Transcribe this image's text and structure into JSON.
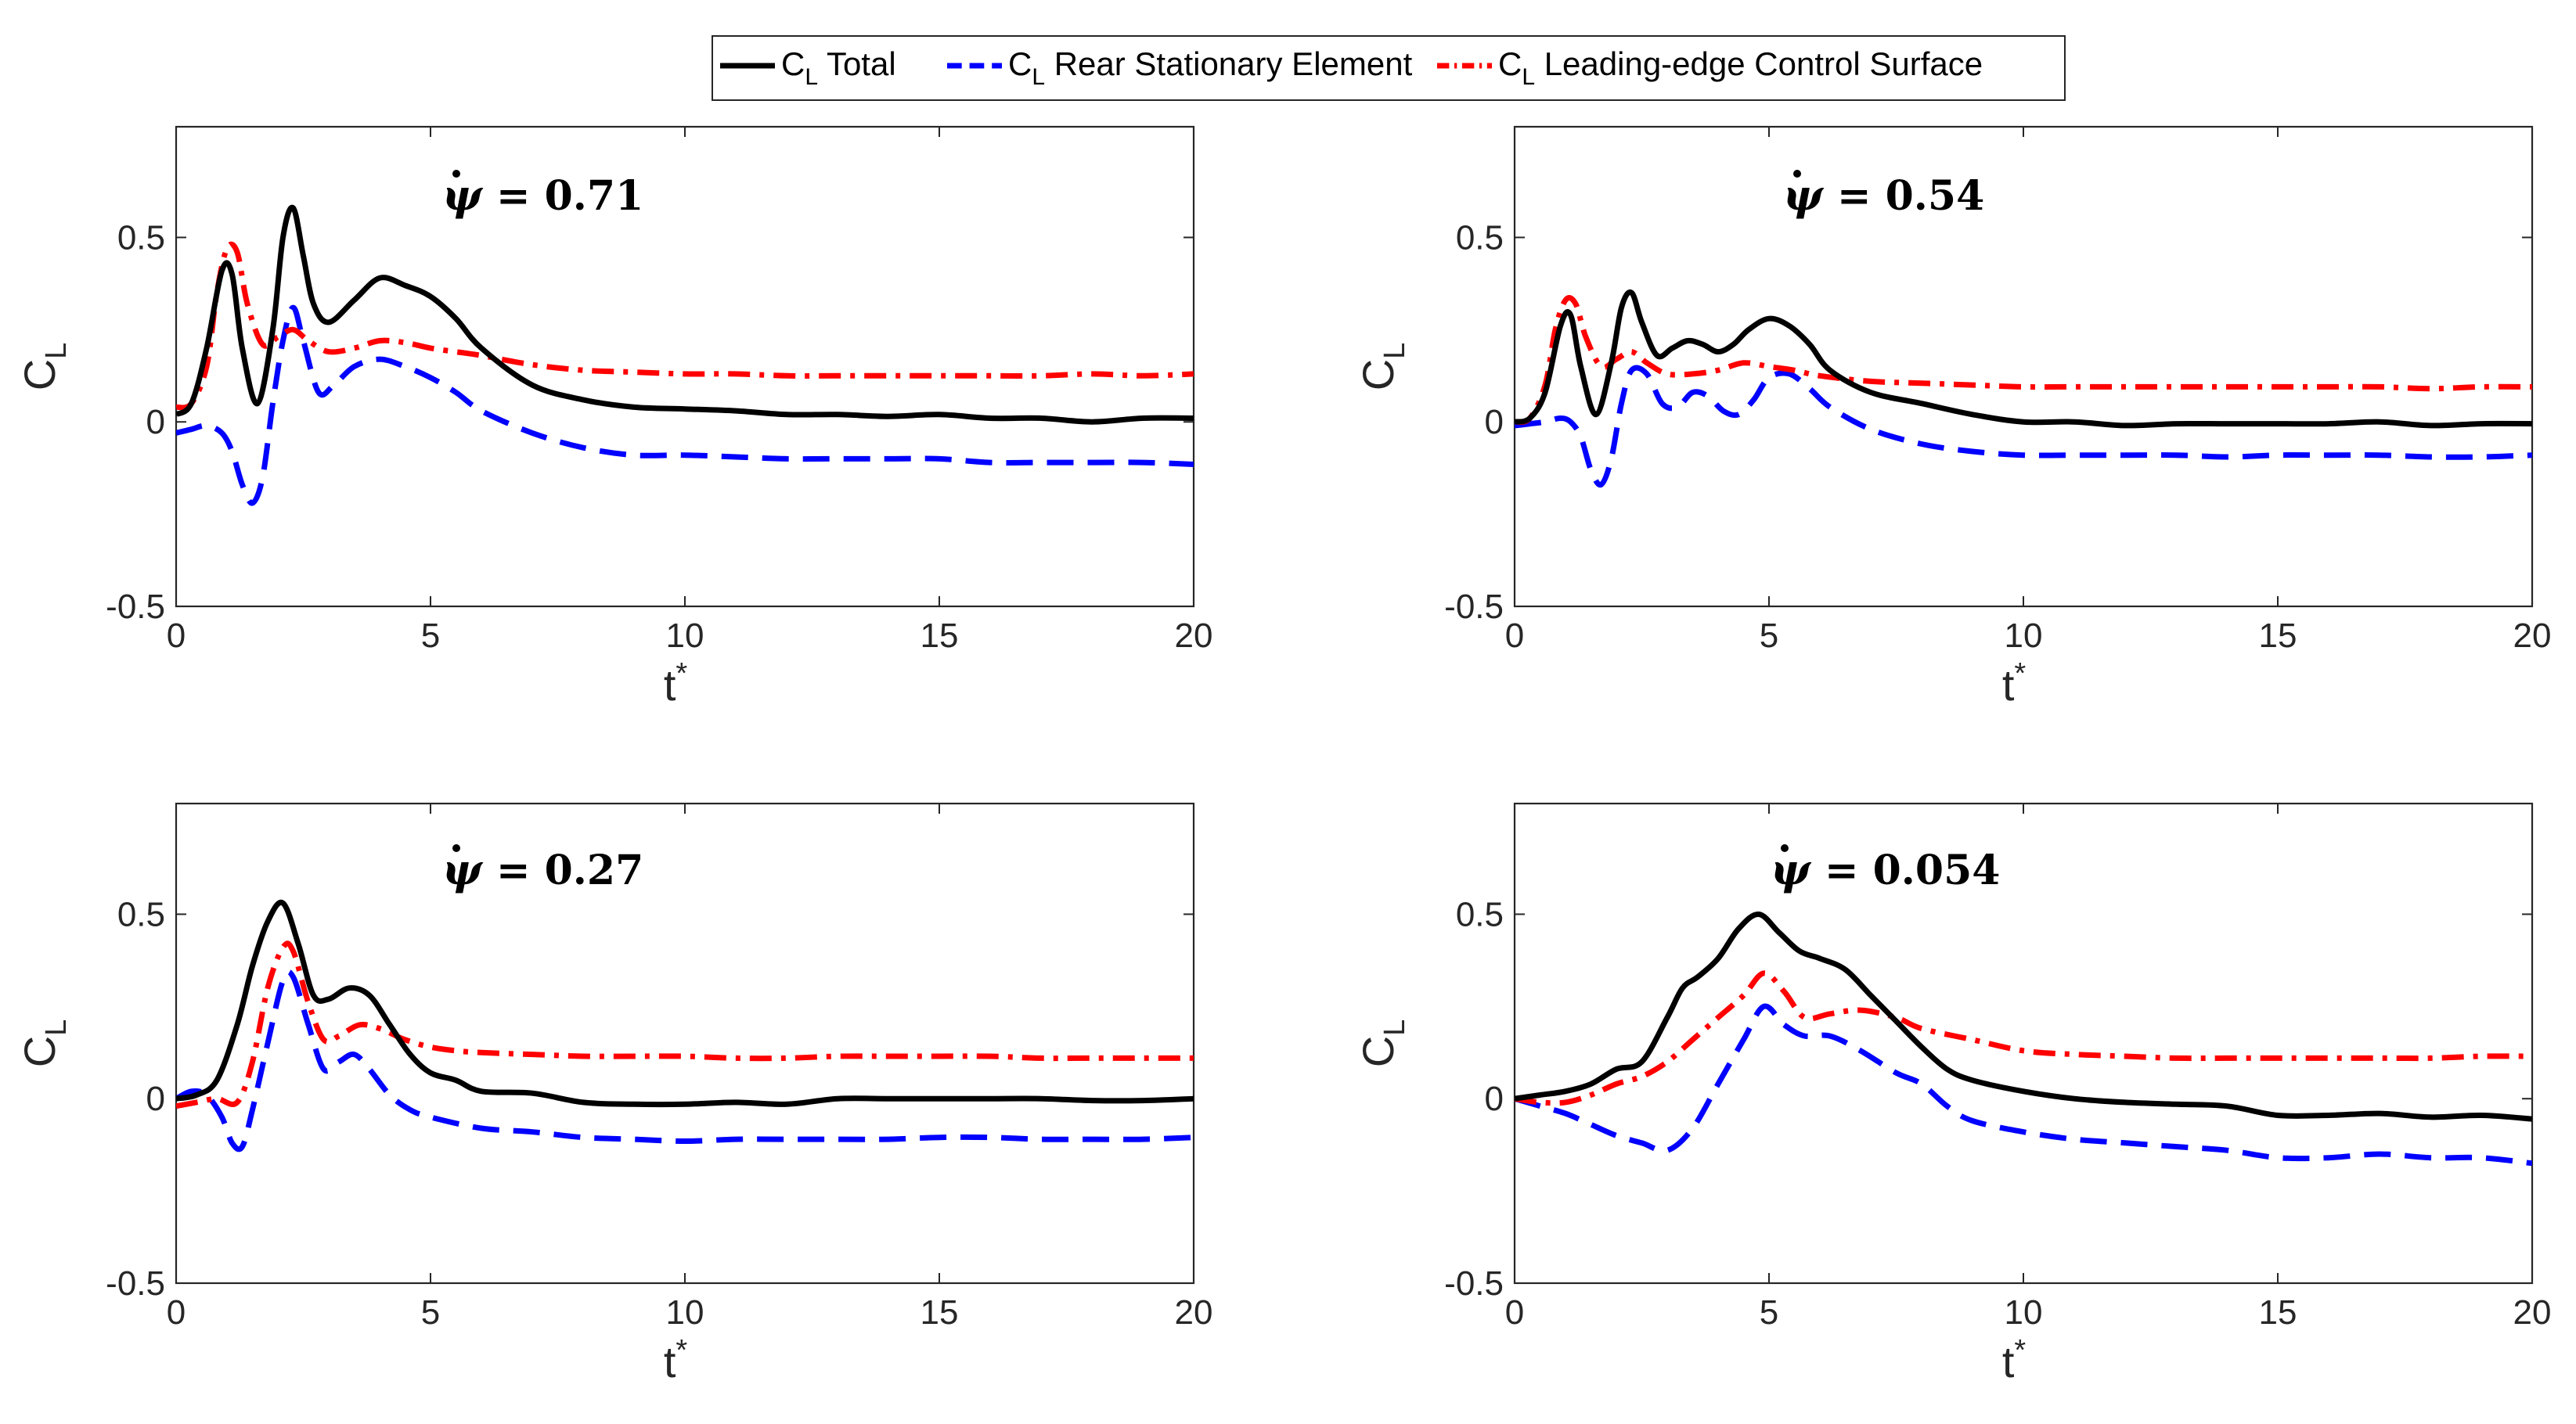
{
  "legend": {
    "entries": [
      {
        "prefix": "C",
        "sub": "L",
        "label": "Total",
        "color": "#000000",
        "dash": "solid"
      },
      {
        "prefix": "C",
        "sub": "L",
        "label": "Rear Stationary Element",
        "color": "#0000ff",
        "dash": "dashed"
      },
      {
        "prefix": "C",
        "sub": "L",
        "label": "Leading-edge Control Surface",
        "color": "#ff0000",
        "dash": "dashdot"
      }
    ]
  },
  "axis_labels": {
    "y_main": "C",
    "y_sub": "L",
    "x_main": "t",
    "x_sup": "*"
  },
  "chart_data": [
    {
      "type": "line",
      "title": "",
      "annotation": {
        "symbol": "ψ",
        "text": " = 0.71"
      },
      "xlabel": "t*",
      "ylabel": "CL",
      "xlim": [
        0,
        20
      ],
      "ylim": [
        -0.5,
        0.8
      ],
      "xticks": [
        "0",
        "5",
        "10",
        "15",
        "20"
      ],
      "yticks": [
        "-0.5",
        "0",
        "0.5"
      ],
      "series": [
        {
          "name": "CL Total",
          "x": [
            0,
            0.3,
            0.6,
            0.9,
            1.1,
            1.3,
            1.6,
            1.9,
            2.1,
            2.3,
            2.5,
            2.7,
            3.0,
            3.5,
            4.0,
            4.5,
            5.0,
            5.5,
            6.0,
            7.0,
            8.0,
            9.0,
            10,
            11,
            12,
            13,
            14,
            15,
            16,
            17,
            18,
            19,
            20
          ],
          "values": [
            0.02,
            0.05,
            0.2,
            0.41,
            0.4,
            0.2,
            0.05,
            0.25,
            0.5,
            0.58,
            0.45,
            0.32,
            0.27,
            0.33,
            0.39,
            0.37,
            0.34,
            0.28,
            0.2,
            0.1,
            0.06,
            0.04,
            0.035,
            0.03,
            0.02,
            0.02,
            0.015,
            0.02,
            0.01,
            0.01,
            0.0,
            0.01,
            0.01
          ]
        },
        {
          "name": "CL Rear Stationary Element",
          "x": [
            0,
            0.3,
            0.6,
            0.9,
            1.1,
            1.3,
            1.5,
            1.7,
            1.9,
            2.1,
            2.3,
            2.5,
            2.8,
            3.1,
            3.5,
            4.0,
            4.5,
            5.0,
            5.5,
            6.0,
            7.0,
            8.0,
            9.0,
            10,
            11,
            12,
            13,
            14,
            15,
            16,
            17,
            18,
            19,
            20
          ],
          "values": [
            -0.03,
            -0.02,
            -0.01,
            -0.03,
            -0.08,
            -0.17,
            -0.22,
            -0.15,
            0.05,
            0.22,
            0.31,
            0.22,
            0.08,
            0.1,
            0.15,
            0.17,
            0.15,
            0.12,
            0.08,
            0.03,
            -0.03,
            -0.07,
            -0.09,
            -0.09,
            -0.095,
            -0.1,
            -0.1,
            -0.1,
            -0.1,
            -0.11,
            -0.11,
            -0.11,
            -0.11,
            -0.115
          ]
        },
        {
          "name": "CL Leading-edge Control Surface",
          "x": [
            0,
            0.3,
            0.6,
            0.8,
            1.0,
            1.2,
            1.4,
            1.7,
            2.0,
            2.3,
            2.6,
            3.0,
            3.5,
            4.0,
            4.5,
            5.0,
            5.5,
            6.0,
            7.0,
            8.0,
            9.0,
            10,
            11,
            12,
            13,
            14,
            15,
            16,
            17,
            18,
            19,
            20
          ],
          "values": [
            0.04,
            0.05,
            0.15,
            0.35,
            0.47,
            0.46,
            0.32,
            0.21,
            0.23,
            0.25,
            0.22,
            0.19,
            0.2,
            0.22,
            0.215,
            0.2,
            0.19,
            0.18,
            0.155,
            0.14,
            0.135,
            0.13,
            0.13,
            0.125,
            0.125,
            0.125,
            0.125,
            0.125,
            0.125,
            0.13,
            0.125,
            0.13
          ]
        }
      ]
    },
    {
      "type": "line",
      "title": "",
      "annotation": {
        "symbol": "ψ",
        "text": " = 0.54"
      },
      "xlabel": "t*",
      "ylabel": "CL",
      "xlim": [
        0,
        20
      ],
      "ylim": [
        -0.5,
        0.8
      ],
      "xticks": [
        "0",
        "5",
        "10",
        "15",
        "20"
      ],
      "yticks": [
        "-0.5",
        "0",
        "0.5"
      ],
      "series": [
        {
          "name": "CL Total",
          "x": [
            0,
            0.3,
            0.6,
            0.9,
            1.1,
            1.3,
            1.6,
            1.9,
            2.1,
            2.3,
            2.5,
            2.8,
            3.1,
            3.4,
            3.7,
            4.0,
            4.3,
            4.6,
            5.0,
            5.4,
            5.8,
            6.2,
            7.0,
            8.0,
            9.0,
            10,
            11,
            12,
            13,
            14,
            15,
            16,
            17,
            18,
            19,
            20
          ],
          "values": [
            0.0,
            0.01,
            0.08,
            0.26,
            0.29,
            0.15,
            0.02,
            0.16,
            0.31,
            0.35,
            0.27,
            0.18,
            0.2,
            0.22,
            0.21,
            0.19,
            0.21,
            0.25,
            0.28,
            0.26,
            0.21,
            0.14,
            0.08,
            0.05,
            0.02,
            0.0,
            0.0,
            -0.01,
            -0.005,
            -0.005,
            -0.005,
            -0.005,
            0.0,
            -0.01,
            -0.005,
            -0.005
          ]
        },
        {
          "name": "CL Rear Stationary Element",
          "x": [
            0,
            0.3,
            0.6,
            0.9,
            1.1,
            1.3,
            1.5,
            1.7,
            1.9,
            2.1,
            2.3,
            2.6,
            2.9,
            3.2,
            3.5,
            3.8,
            4.1,
            4.4,
            4.7,
            5.0,
            5.4,
            5.8,
            6.2,
            7.0,
            8.0,
            9.0,
            10,
            11,
            12,
            13,
            14,
            15,
            16,
            17,
            18,
            19,
            20
          ],
          "values": [
            -0.01,
            -0.005,
            0.0,
            0.01,
            0.0,
            -0.04,
            -0.13,
            -0.17,
            -0.1,
            0.05,
            0.14,
            0.13,
            0.05,
            0.04,
            0.08,
            0.07,
            0.03,
            0.02,
            0.06,
            0.12,
            0.13,
            0.09,
            0.04,
            -0.02,
            -0.06,
            -0.08,
            -0.09,
            -0.09,
            -0.09,
            -0.09,
            -0.095,
            -0.09,
            -0.09,
            -0.09,
            -0.095,
            -0.095,
            -0.09
          ]
        },
        {
          "name": "CL Leading-edge Control Surface",
          "x": [
            0,
            0.3,
            0.6,
            0.8,
            1.0,
            1.2,
            1.4,
            1.7,
            2.0,
            2.3,
            2.6,
            3.0,
            3.5,
            4.0,
            4.5,
            5.0,
            5.5,
            6.0,
            7.0,
            8.0,
            9.0,
            10,
            11,
            12,
            13,
            14,
            15,
            16,
            17,
            18,
            19,
            20
          ],
          "values": [
            0.0,
            0.01,
            0.1,
            0.25,
            0.33,
            0.32,
            0.23,
            0.15,
            0.17,
            0.19,
            0.16,
            0.13,
            0.13,
            0.14,
            0.16,
            0.15,
            0.14,
            0.125,
            0.11,
            0.105,
            0.1,
            0.095,
            0.095,
            0.095,
            0.095,
            0.095,
            0.095,
            0.095,
            0.095,
            0.09,
            0.095,
            0.095
          ]
        }
      ]
    },
    {
      "type": "line",
      "title": "",
      "annotation": {
        "symbol": "ψ",
        "text": " = 0.27"
      },
      "xlabel": "t*",
      "ylabel": "CL",
      "xlim": [
        0,
        20
      ],
      "ylim": [
        -0.5,
        0.8
      ],
      "xticks": [
        "0",
        "5",
        "10",
        "15",
        "20"
      ],
      "yticks": [
        "-0.5",
        "0",
        "0.5"
      ],
      "series": [
        {
          "name": "CL Total",
          "x": [
            0,
            0.4,
            0.8,
            1.2,
            1.5,
            1.8,
            2.1,
            2.4,
            2.7,
            3.0,
            3.4,
            3.8,
            4.2,
            4.6,
            5.0,
            5.5,
            6.0,
            7.0,
            8.0,
            9.0,
            10,
            11,
            12,
            13,
            14,
            15,
            16,
            17,
            18,
            19,
            20
          ],
          "values": [
            0.0,
            0.01,
            0.05,
            0.2,
            0.36,
            0.48,
            0.53,
            0.42,
            0.28,
            0.27,
            0.3,
            0.28,
            0.2,
            0.12,
            0.07,
            0.05,
            0.02,
            0.015,
            -0.01,
            -0.015,
            -0.015,
            -0.01,
            -0.015,
            0.0,
            0.0,
            0.0,
            0.0,
            0.0,
            -0.005,
            -0.005,
            0.0
          ]
        },
        {
          "name": "CL Rear Stationary Element",
          "x": [
            0,
            0.3,
            0.6,
            0.9,
            1.1,
            1.3,
            1.5,
            1.8,
            2.1,
            2.3,
            2.6,
            2.9,
            3.2,
            3.5,
            3.8,
            4.2,
            4.6,
            5.0,
            6.0,
            7.0,
            8.0,
            9.0,
            10,
            11,
            12,
            13,
            14,
            15,
            16,
            17,
            18,
            19,
            20
          ],
          "values": [
            0.0,
            0.02,
            0.01,
            -0.05,
            -0.12,
            -0.13,
            -0.03,
            0.15,
            0.32,
            0.33,
            0.2,
            0.08,
            0.1,
            0.12,
            0.08,
            0.01,
            -0.03,
            -0.05,
            -0.08,
            -0.09,
            -0.105,
            -0.11,
            -0.115,
            -0.11,
            -0.11,
            -0.11,
            -0.11,
            -0.105,
            -0.105,
            -0.11,
            -0.11,
            -0.11,
            -0.105
          ]
        },
        {
          "name": "CL Leading-edge Control Surface",
          "x": [
            0,
            0.4,
            0.8,
            1.2,
            1.5,
            1.8,
            2.1,
            2.3,
            2.6,
            2.9,
            3.2,
            3.6,
            4.0,
            4.5,
            5.0,
            5.5,
            6.0,
            7.0,
            8.0,
            9.0,
            10,
            11,
            12,
            13,
            14,
            15,
            16,
            17,
            18,
            19,
            20
          ],
          "values": [
            -0.02,
            -0.01,
            0.0,
            -0.01,
            0.1,
            0.3,
            0.41,
            0.4,
            0.26,
            0.16,
            0.17,
            0.2,
            0.19,
            0.16,
            0.14,
            0.13,
            0.125,
            0.12,
            0.115,
            0.115,
            0.115,
            0.11,
            0.11,
            0.115,
            0.115,
            0.115,
            0.115,
            0.11,
            0.11,
            0.11,
            0.11
          ]
        }
      ]
    },
    {
      "type": "line",
      "title": "",
      "annotation": {
        "symbol": "ψ",
        "text": " = 0.054"
      },
      "xlabel": "t*",
      "ylabel": "CL",
      "xlim": [
        0,
        20
      ],
      "ylim": [
        -0.5,
        0.8
      ],
      "xticks": [
        "0",
        "5",
        "10",
        "15",
        "20"
      ],
      "yticks": [
        "-0.5",
        "0",
        "0.5"
      ],
      "series": [
        {
          "name": "CL Total",
          "x": [
            0,
            0.5,
            1.0,
            1.5,
            2.0,
            2.5,
            3.0,
            3.3,
            3.6,
            4.0,
            4.4,
            4.8,
            5.2,
            5.6,
            6.0,
            6.5,
            7.0,
            7.5,
            8.0,
            8.5,
            9.0,
            10,
            11,
            12,
            13,
            14,
            15,
            16,
            17,
            18,
            19,
            20
          ],
          "values": [
            0.0,
            0.01,
            0.02,
            0.04,
            0.08,
            0.1,
            0.22,
            0.3,
            0.33,
            0.38,
            0.46,
            0.5,
            0.45,
            0.4,
            0.38,
            0.35,
            0.28,
            0.21,
            0.14,
            0.08,
            0.05,
            0.02,
            0.0,
            -0.01,
            -0.015,
            -0.02,
            -0.045,
            -0.045,
            -0.04,
            -0.05,
            -0.045,
            -0.055
          ]
        },
        {
          "name": "CL Rear Stationary Element",
          "x": [
            0,
            0.5,
            1.0,
            1.5,
            2.0,
            2.5,
            3.0,
            3.5,
            4.0,
            4.5,
            4.9,
            5.3,
            5.7,
            6.2,
            6.8,
            7.5,
            8.0,
            8.5,
            9.0,
            10,
            11,
            12,
            13,
            14,
            15,
            16,
            17,
            18,
            19,
            20
          ],
          "values": [
            0.0,
            -0.02,
            -0.04,
            -0.07,
            -0.1,
            -0.12,
            -0.14,
            -0.08,
            0.04,
            0.16,
            0.25,
            0.2,
            0.17,
            0.17,
            0.13,
            0.07,
            0.04,
            -0.02,
            -0.06,
            -0.09,
            -0.11,
            -0.12,
            -0.13,
            -0.14,
            -0.16,
            -0.16,
            -0.15,
            -0.16,
            -0.16,
            -0.175
          ]
        },
        {
          "name": "CL Leading-edge Control Surface",
          "x": [
            0,
            0.5,
            1.0,
            1.5,
            2.0,
            2.5,
            3.0,
            3.5,
            4.0,
            4.5,
            4.9,
            5.3,
            5.7,
            6.2,
            6.8,
            7.5,
            8.0,
            9.0,
            10,
            11,
            12,
            13,
            14,
            15,
            16,
            17,
            18,
            19,
            20
          ],
          "values": [
            0.0,
            -0.01,
            -0.01,
            0.01,
            0.04,
            0.06,
            0.1,
            0.16,
            0.22,
            0.28,
            0.34,
            0.29,
            0.22,
            0.23,
            0.24,
            0.22,
            0.19,
            0.16,
            0.13,
            0.12,
            0.115,
            0.11,
            0.11,
            0.11,
            0.11,
            0.11,
            0.11,
            0.115,
            0.115
          ]
        }
      ]
    }
  ]
}
